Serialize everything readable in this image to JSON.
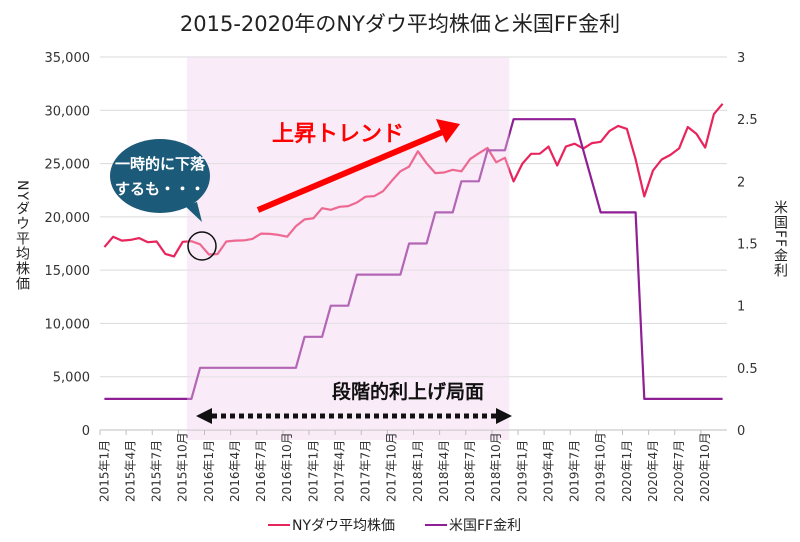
{
  "chart_data": {
    "type": "line",
    "title": "2015-2020年のNYダウ平均株価と米国FF金利",
    "ylabel": "NYダウ平均株価",
    "y2label": "米国FF金利",
    "ylim": [
      0,
      35000
    ],
    "y2lim": [
      0,
      3
    ],
    "yticks": [
      "0",
      "5,000",
      "10,000",
      "15,000",
      "20,000",
      "25,000",
      "30,000",
      "35,000"
    ],
    "y2ticks": [
      "0",
      "0.5",
      "1",
      "1.5",
      "2",
      "2.5",
      "3"
    ],
    "grid": true,
    "legend_position": "bottom-right",
    "x": [
      "2015-01",
      "2015-02",
      "2015-03",
      "2015-04",
      "2015-05",
      "2015-06",
      "2015-07",
      "2015-08",
      "2015-09",
      "2015-10",
      "2015-11",
      "2015-12",
      "2016-01",
      "2016-02",
      "2016-03",
      "2016-04",
      "2016-05",
      "2016-06",
      "2016-07",
      "2016-08",
      "2016-09",
      "2016-10",
      "2016-11",
      "2016-12",
      "2017-01",
      "2017-02",
      "2017-03",
      "2017-04",
      "2017-05",
      "2017-06",
      "2017-07",
      "2017-08",
      "2017-09",
      "2017-10",
      "2017-11",
      "2017-12",
      "2018-01",
      "2018-02",
      "2018-03",
      "2018-04",
      "2018-05",
      "2018-06",
      "2018-07",
      "2018-08",
      "2018-09",
      "2018-10",
      "2018-11",
      "2018-12",
      "2019-01",
      "2019-02",
      "2019-03",
      "2019-04",
      "2019-05",
      "2019-06",
      "2019-07",
      "2019-08",
      "2019-09",
      "2019-10",
      "2019-11",
      "2019-12",
      "2020-01",
      "2020-02",
      "2020-03",
      "2020-04",
      "2020-05",
      "2020-06",
      "2020-07",
      "2020-08",
      "2020-09",
      "2020-10",
      "2020-11",
      "2020-12"
    ],
    "xtick_labels": [
      "2015年1月",
      "2015年4月",
      "2015年7月",
      "2015年10月",
      "2016年1月",
      "2016年4月",
      "2016年7月",
      "2016年10月",
      "2017年1月",
      "2017年4月",
      "2017年7月",
      "2017年10月",
      "2018年1月",
      "2018年4月",
      "2018年7月",
      "2018年10月",
      "2019年1月",
      "2019年4月",
      "2019年7月",
      "2019年10月",
      "2020年1月",
      "2020年4月",
      "2020年7月",
      "2020年10月"
    ],
    "series": [
      {
        "name": "NYダウ平均株価",
        "axis": "left",
        "color": "#e8245c",
        "values": [
          17165,
          18133,
          17776,
          17841,
          18011,
          17620,
          17690,
          16528,
          16285,
          17664,
          17720,
          17425,
          16466,
          16517,
          17685,
          17774,
          17787,
          17930,
          18432,
          18401,
          18308,
          18142,
          19124,
          19763,
          19864,
          20812,
          20663,
          20941,
          21009,
          21350,
          21891,
          21948,
          22405,
          23377,
          24272,
          24719,
          26149,
          25029,
          24103,
          24163,
          24416,
          24271,
          25415,
          25965,
          26458,
          25116,
          25538,
          23327,
          24999,
          25916,
          25929,
          26593,
          24815,
          26600,
          26864,
          26403,
          26917,
          27046,
          28051,
          28538,
          28256,
          25409,
          21917,
          24346,
          25383,
          25813,
          26428,
          28430,
          27782,
          26502,
          29639,
          30606
        ]
      },
      {
        "name": "米国FF金利",
        "axis": "right",
        "color": "#8e1f94",
        "values": [
          0.25,
          0.25,
          0.25,
          0.25,
          0.25,
          0.25,
          0.25,
          0.25,
          0.25,
          0.25,
          0.25,
          0.5,
          0.5,
          0.5,
          0.5,
          0.5,
          0.5,
          0.5,
          0.5,
          0.5,
          0.5,
          0.5,
          0.5,
          0.75,
          0.75,
          0.75,
          1.0,
          1.0,
          1.0,
          1.25,
          1.25,
          1.25,
          1.25,
          1.25,
          1.25,
          1.5,
          1.5,
          1.5,
          1.75,
          1.75,
          1.75,
          2.0,
          2.0,
          2.0,
          2.25,
          2.25,
          2.25,
          2.5,
          2.5,
          2.5,
          2.5,
          2.5,
          2.5,
          2.5,
          2.5,
          2.25,
          2.0,
          1.75,
          1.75,
          1.75,
          1.75,
          1.75,
          0.25,
          0.25,
          0.25,
          0.25,
          0.25,
          0.25,
          0.25,
          0.25,
          0.25,
          0.25
        ]
      }
    ],
    "shaded_period": {
      "from": "2015-11",
      "to": "2018-11",
      "color": "#f9ecf7"
    },
    "annotations": {
      "bubble_line1": "一時的に下落",
      "bubble_line2": "するも・・・",
      "trend": "上昇トレンド",
      "phase": "段階的利上げ局面"
    },
    "bubble_color": "#1c5a79",
    "trend_color": "#ff0000"
  }
}
